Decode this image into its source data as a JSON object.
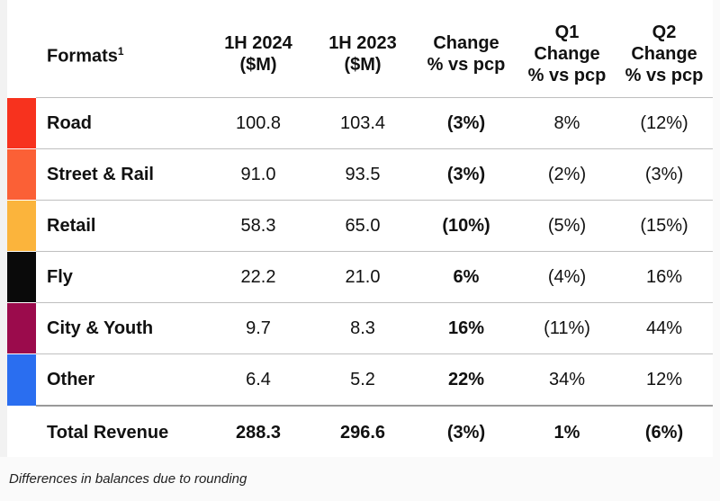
{
  "header": {
    "formats": "Formats",
    "formats_sup": "1",
    "h1_2024": [
      "1H 2024",
      "($M)"
    ],
    "h1_2023": [
      "1H 2023",
      "($M)"
    ],
    "change": [
      "Change",
      "% vs pcp"
    ],
    "q1": [
      "Q1",
      "Change",
      "% vs pcp"
    ],
    "q2": [
      "Q2",
      "Change",
      "% vs pcp"
    ]
  },
  "rows": [
    {
      "name": "Road",
      "color": "#f7321e",
      "h1_2024": "100.8",
      "h1_2023": "103.4",
      "change": "(3%)",
      "q1": "8%",
      "q2": "(12%)"
    },
    {
      "name": "Street & Rail",
      "color": "#fb6036",
      "h1_2024": "91.0",
      "h1_2023": "93.5",
      "change": "(3%)",
      "q1": "(2%)",
      "q2": "(3%)"
    },
    {
      "name": "Retail",
      "color": "#fbb43c",
      "h1_2024": "58.3",
      "h1_2023": "65.0",
      "change": "(10%)",
      "q1": "(5%)",
      "q2": "(15%)"
    },
    {
      "name": "Fly",
      "color": "#0a0a0a",
      "h1_2024": "22.2",
      "h1_2023": "21.0",
      "change": "6%",
      "q1": "(4%)",
      "q2": "16%"
    },
    {
      "name": "City & Youth",
      "color": "#9b0b4c",
      "h1_2024": "9.7",
      "h1_2023": "8.3",
      "change": "16%",
      "q1": "(11%)",
      "q2": "44%"
    },
    {
      "name": "Other",
      "color": "#2a6ef0",
      "h1_2024": "6.4",
      "h1_2023": "5.2",
      "change": "22%",
      "q1": "34%",
      "q2": "12%"
    }
  ],
  "total": {
    "name": "Total Revenue",
    "h1_2024": "288.3",
    "h1_2023": "296.6",
    "change": "(3%)",
    "q1": "1%",
    "q2": "(6%)"
  },
  "footnote": "Differences in balances due to rounding"
}
